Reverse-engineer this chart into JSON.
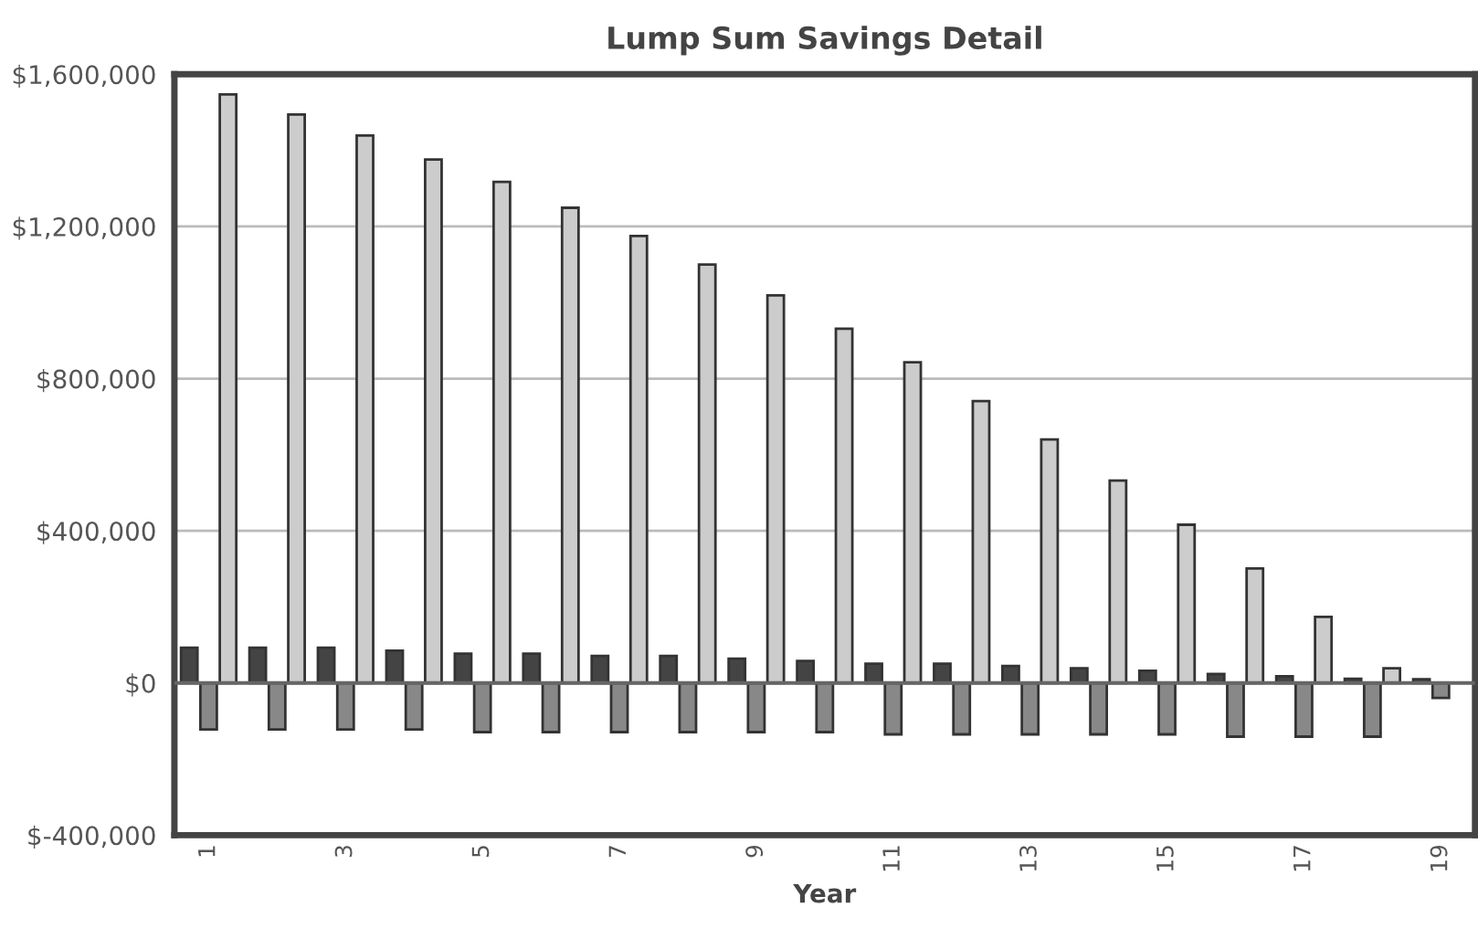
{
  "chart_data": {
    "type": "bar",
    "title": "Lump Sum Savings Detail",
    "xlabel": "Year",
    "categories": [
      "1",
      null,
      "3",
      null,
      "5",
      null,
      "7",
      null,
      "9",
      null,
      "11",
      null,
      "13",
      null,
      "15",
      null,
      "17",
      null,
      "19"
    ],
    "series": [
      {
        "color": "#444444",
        "values": [
          93000,
          93000,
          93000,
          85000,
          77000,
          77000,
          71000,
          71000,
          64000,
          58000,
          51000,
          51000,
          45000,
          39000,
          32000,
          24000,
          18000,
          11000,
          10000
        ]
      },
      {
        "color": "#888888",
        "values": [
          -122000,
          -122000,
          -122000,
          -122000,
          -129000,
          -129000,
          -129000,
          -129000,
          -129000,
          -129000,
          -135000,
          -135000,
          -135000,
          -135000,
          -135000,
          -141000,
          -141000,
          -141000,
          -39000
        ]
      },
      {
        "color": "#cccccc",
        "values": [
          1547000,
          1494000,
          1439000,
          1376000,
          1317000,
          1249000,
          1175000,
          1100000,
          1019000,
          931000,
          843000,
          741000,
          640000,
          532000,
          416000,
          301000,
          174000,
          39000,
          null
        ]
      }
    ],
    "ylim": [
      -400000,
      1600000
    ],
    "yticks": [
      {
        "value": -400000,
        "label": "$-400,000"
      },
      {
        "value": 0,
        "label": "$0"
      },
      {
        "value": 400000,
        "label": "$400,000"
      },
      {
        "value": 800000,
        "label": "$800,000"
      },
      {
        "value": 1200000,
        "label": "$1,200,000"
      },
      {
        "value": 1600000,
        "label": "$1,600,000"
      }
    ],
    "grid": "y",
    "legend": false
  }
}
